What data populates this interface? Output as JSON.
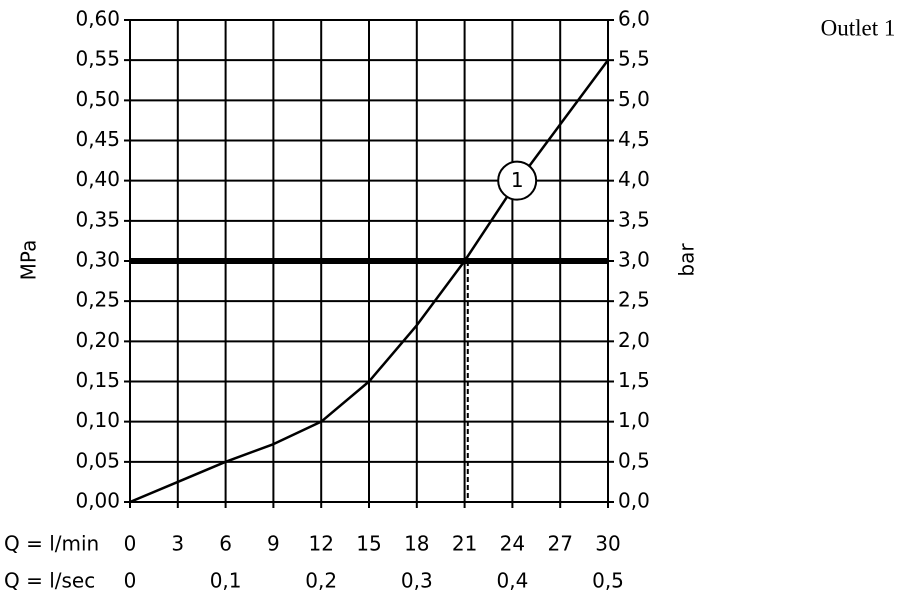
{
  "chart_data": {
    "type": "line",
    "title": "Outlet 1",
    "ylabel": "MPa",
    "y2label": "bar",
    "xlabel": "Q = l/min",
    "x2label": "Q = l/sec",
    "x": [
      0,
      3,
      6,
      9,
      12,
      15,
      18,
      21,
      24,
      27,
      30
    ],
    "series": [
      {
        "color": "#000000",
        "values": [
          0,
          0.025,
          0.05,
          0.072,
          0.1,
          0.15,
          0.22,
          0.3,
          0.39,
          0.47,
          0.55
        ]
      }
    ],
    "xlim": [
      0,
      30
    ],
    "xticks": [
      0,
      3,
      6,
      9,
      12,
      15,
      18,
      21,
      24,
      27,
      30
    ],
    "x2lim": [
      0,
      0.5
    ],
    "x2ticks": [
      0,
      {
        "value": 0.1,
        "label": "0,1"
      },
      {
        "value": 0.2,
        "label": "0,2"
      },
      {
        "value": 0.3,
        "label": "0,3"
      },
      {
        "value": 0.4,
        "label": "0,4"
      },
      {
        "value": 0.5,
        "label": "0,5"
      }
    ],
    "ylim": [
      0,
      0.6
    ],
    "yticks": [
      {
        "value": 0,
        "label": "0,00"
      },
      {
        "value": 0.05,
        "label": "0,05"
      },
      {
        "value": 0.1,
        "label": "0,10"
      },
      {
        "value": 0.15,
        "label": "0,15"
      },
      {
        "value": 0.2,
        "label": "0,20"
      },
      {
        "value": 0.25,
        "label": "0,25"
      },
      {
        "value": 0.3,
        "label": "0,30"
      },
      {
        "value": 0.35,
        "label": "0,35"
      },
      {
        "value": 0.4,
        "label": "0,40"
      },
      {
        "value": 0.45,
        "label": "0,45"
      },
      {
        "value": 0.5,
        "label": "0,50"
      },
      {
        "value": 0.55,
        "label": "0,55"
      },
      {
        "value": 0.6,
        "label": "0,60"
      }
    ],
    "y2lim": [
      0,
      6
    ],
    "y2ticks": [
      {
        "value": 0,
        "label": "0,0"
      },
      {
        "value": 0.5,
        "label": "0,5"
      },
      {
        "value": 1,
        "label": "1,0"
      },
      {
        "value": 1.5,
        "label": "1,5"
      },
      {
        "value": 2,
        "label": "2,0"
      },
      {
        "value": 2.5,
        "label": "2,5"
      },
      {
        "value": 3,
        "label": "3,0"
      },
      {
        "value": 3.5,
        "label": "3,5"
      },
      {
        "value": 4,
        "label": "4,0"
      },
      {
        "value": 4.5,
        "label": "4,5"
      },
      {
        "value": 5,
        "label": "5,0"
      },
      {
        "value": 5.5,
        "label": "5,5"
      },
      {
        "value": 6,
        "label": "6,0"
      }
    ],
    "grid": true,
    "hline": 0.3,
    "vline": 21.2,
    "annotations": [
      {
        "text": "1",
        "x": 24.3,
        "y": 0.4
      }
    ]
  }
}
